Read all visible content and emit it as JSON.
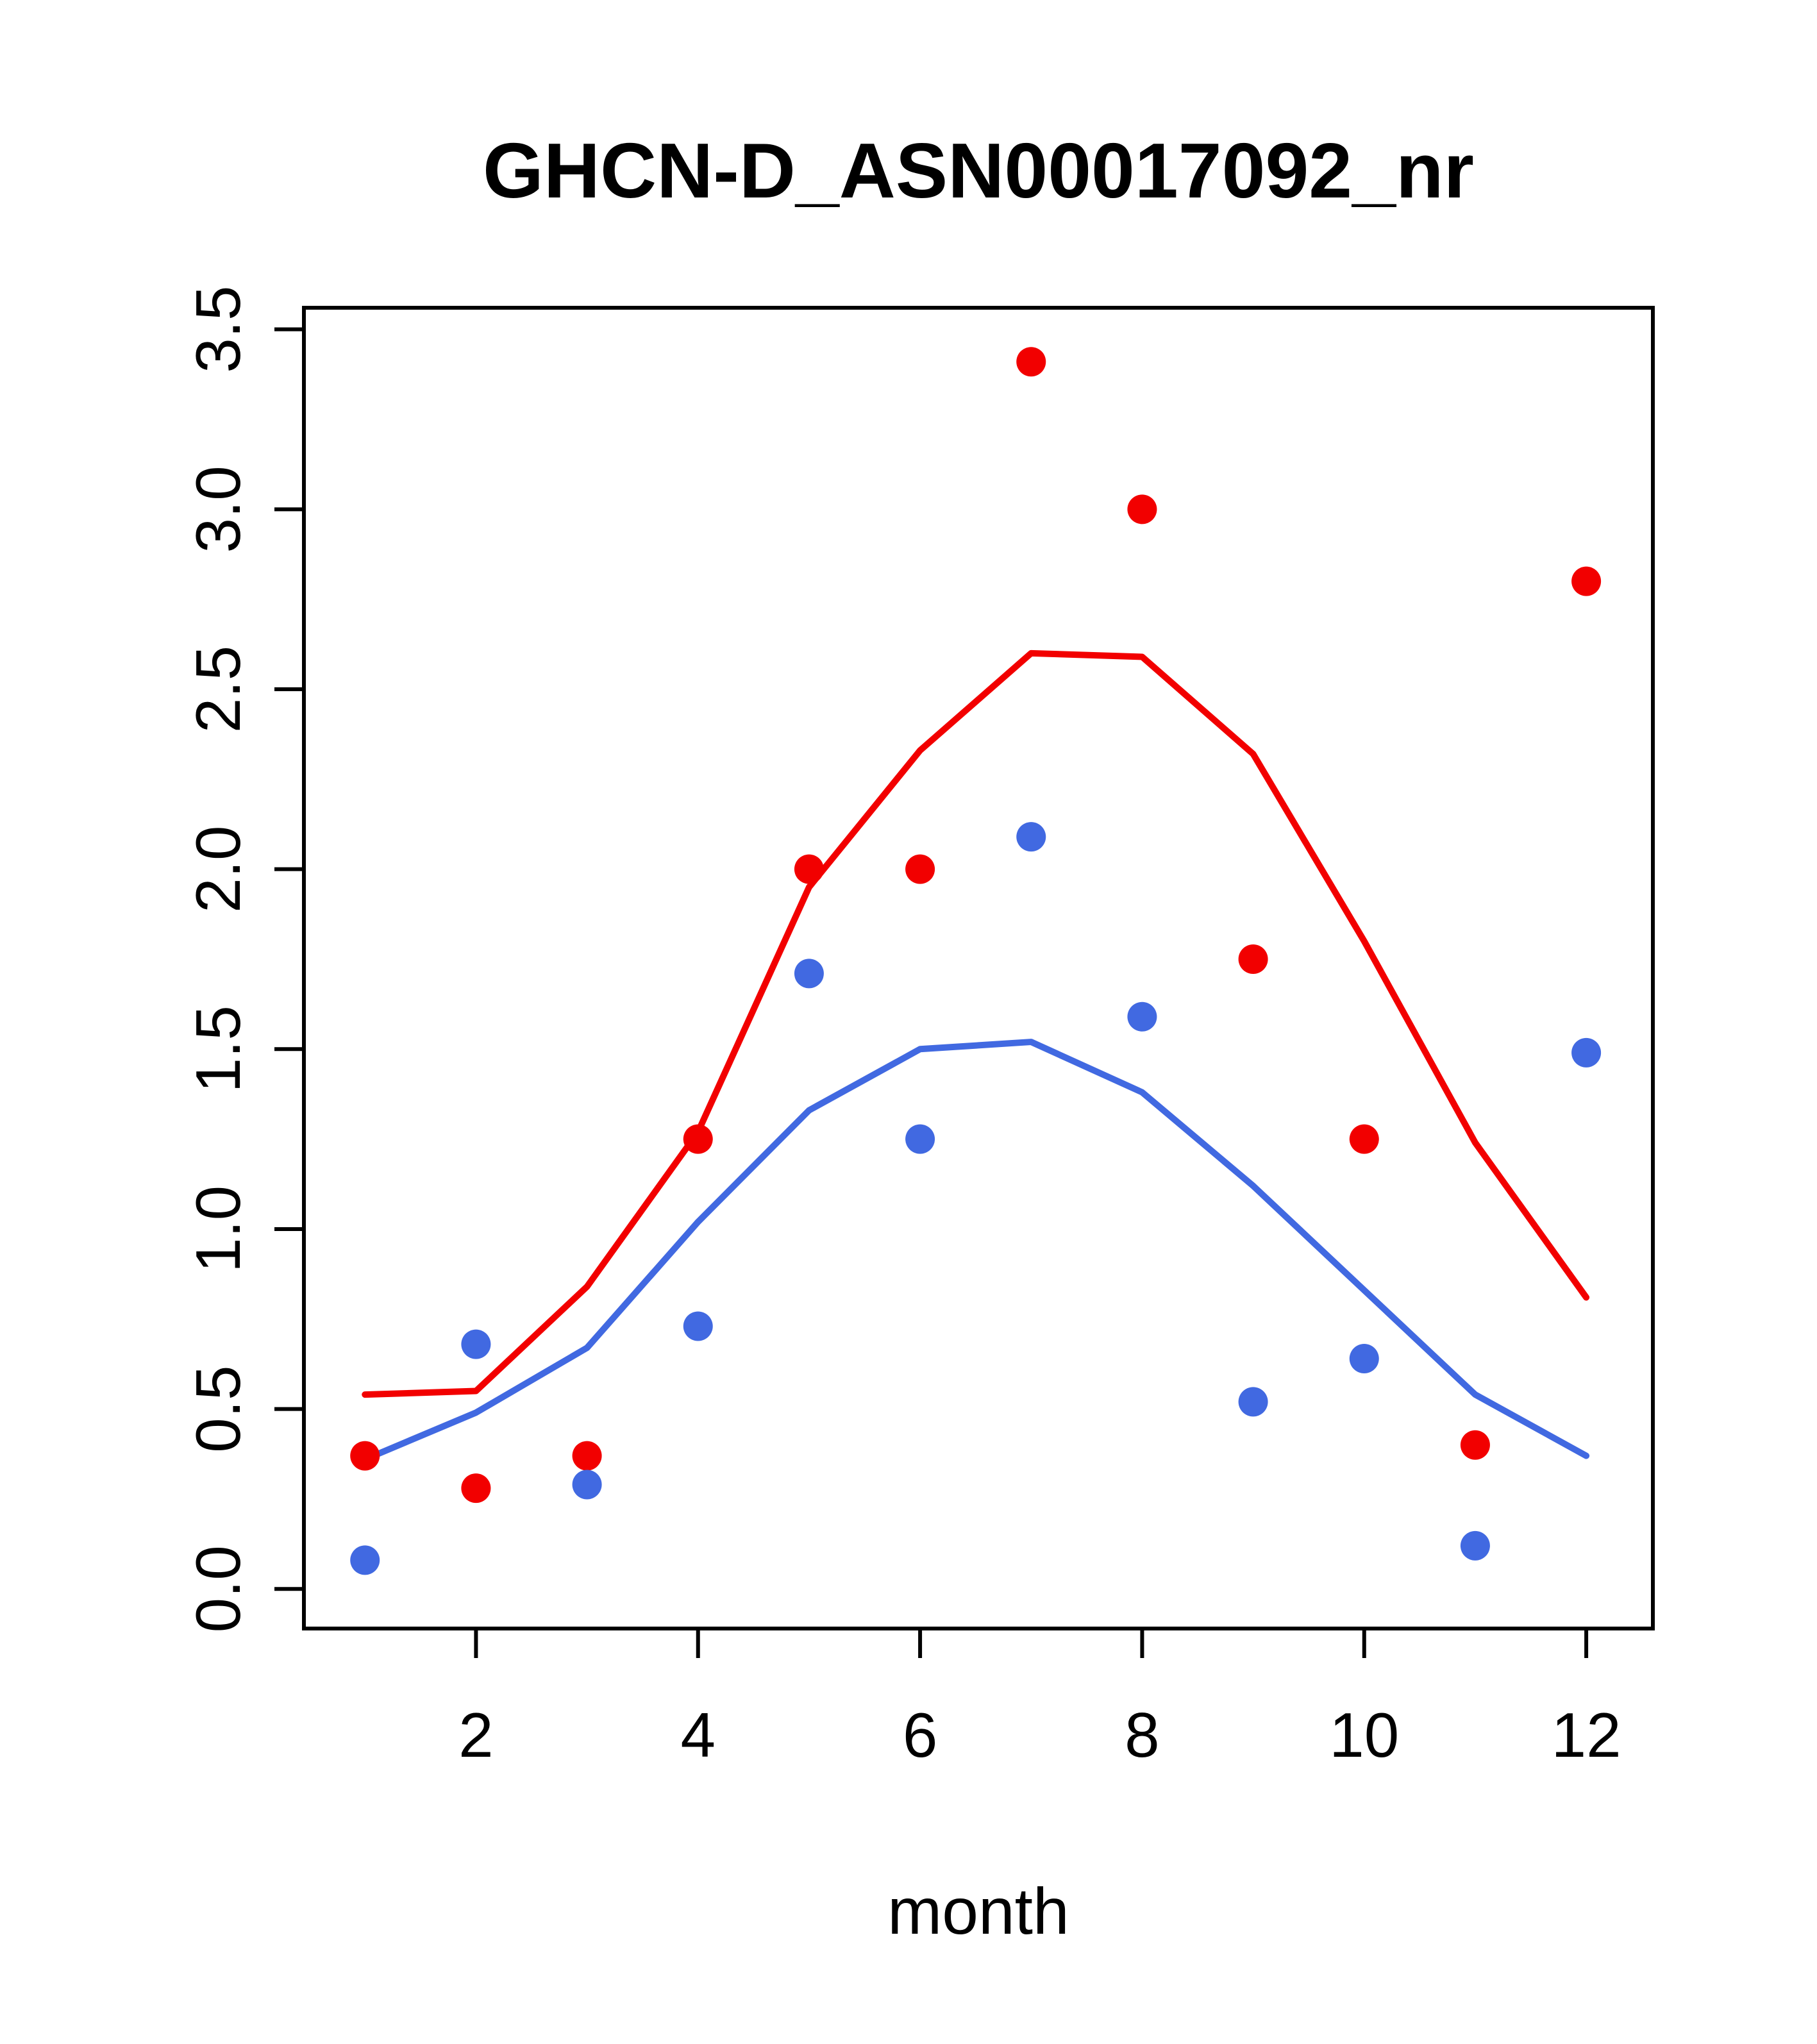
{
  "chart_data": {
    "type": "scatter",
    "title": "GHCN-D_ASN00017092_nr",
    "xlabel": "month",
    "ylabel": "",
    "xlim": [
      0.45,
      12.6
    ],
    "ylim": [
      -0.11,
      3.56
    ],
    "x_tick_labels": [
      "2",
      "4",
      "6",
      "8",
      "10",
      "12"
    ],
    "y_tick_labels": [
      "0.0",
      "0.5",
      "1.0",
      "1.5",
      "2.0",
      "2.5",
      "3.0",
      "3.5"
    ],
    "grid": false,
    "legend": "none",
    "months": [
      1,
      2,
      3,
      4,
      5,
      6,
      7,
      8,
      9,
      10,
      11,
      12
    ],
    "colors": {
      "red": "#f20000",
      "blue": "#4169e1"
    },
    "series": [
      {
        "name": "red-line",
        "type": "line",
        "color": "#f20000",
        "values": [
          0.54,
          0.55,
          0.84,
          1.27,
          1.95,
          2.33,
          2.6,
          2.59,
          2.32,
          1.8,
          1.24,
          0.81
        ]
      },
      {
        "name": "blue-line",
        "type": "line",
        "color": "#4169e1",
        "values": [
          0.36,
          0.49,
          0.67,
          1.02,
          1.33,
          1.5,
          1.52,
          1.38,
          1.12,
          0.83,
          0.54,
          0.37
        ]
      },
      {
        "name": "red-points",
        "type": "points",
        "color": "#f20000",
        "values": [
          0.37,
          0.28,
          0.37,
          1.25,
          2.0,
          2.0,
          3.41,
          3.0,
          1.75,
          1.25,
          0.4,
          2.8
        ]
      },
      {
        "name": "blue-points",
        "type": "points",
        "color": "#4169e1",
        "values": [
          0.08,
          0.68,
          0.29,
          0.73,
          1.71,
          1.25,
          2.09,
          1.59,
          0.52,
          0.64,
          0.12,
          1.49
        ]
      }
    ]
  }
}
